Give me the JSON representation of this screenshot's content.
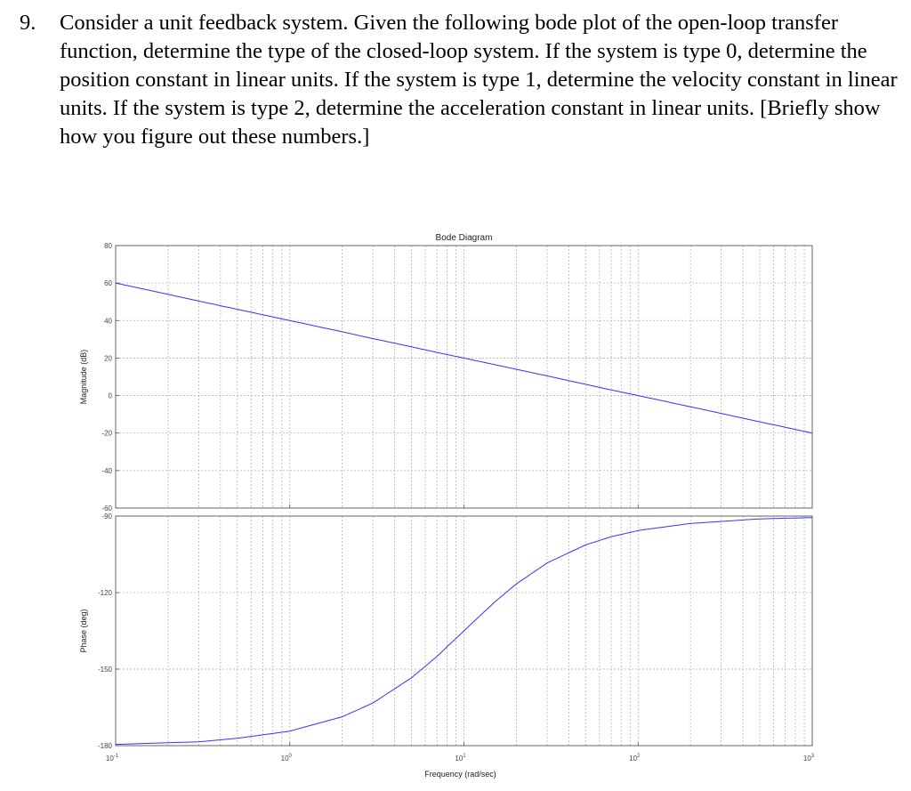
{
  "question": {
    "number": "9.",
    "text": "Consider a unit feedback system. Given the following bode plot of the open-loop transfer function, determine the type of the closed-loop system. If the system is type 0, determine the position constant in linear units. If the system is type 1, determine the velocity constant in linear units. If the system is type 2, determine the acceleration constant in linear units. [Briefly show how you figure out these numbers.]"
  },
  "colors": {
    "curve": "#3333ff",
    "grid": "#b4b4b4",
    "axis": "#555555"
  },
  "chart_data": {
    "type": "line",
    "title": "Bode Diagram",
    "xlabel": "Frequency  (rad/sec)",
    "xscale": "log",
    "xlim": [
      0.1,
      1000
    ],
    "x_ticks": [
      {
        "base": "10",
        "exp": "-1"
      },
      {
        "base": "10",
        "exp": "0"
      },
      {
        "base": "10",
        "exp": "1"
      },
      {
        "base": "10",
        "exp": "2"
      },
      {
        "base": "10",
        "exp": "3"
      }
    ],
    "grid": true,
    "magnitude": {
      "ylabel": "Magnitude (dB)",
      "ylim": [
        -60,
        80
      ],
      "yticks": [
        "80",
        "60",
        "40",
        "20",
        "0",
        "-20",
        "-40",
        "-60"
      ],
      "series": {
        "x": [
          0.1,
          0.2,
          0.3,
          0.5,
          1,
          2,
          3,
          5,
          7,
          10,
          15,
          20,
          30,
          50,
          70,
          100,
          200,
          500,
          1000
        ],
        "y": [
          60,
          54,
          50.4,
          46,
          40,
          34,
          30.4,
          26,
          23,
          20,
          16.5,
          14,
          10.5,
          6,
          3,
          0,
          -6,
          -14,
          -20
        ]
      }
    },
    "phase": {
      "ylabel": "Phase (deg)",
      "ylim": [
        -180,
        -90
      ],
      "yticks": [
        "-90",
        "-120",
        "-150",
        "-180"
      ],
      "series": {
        "x": [
          0.1,
          0.3,
          0.5,
          1,
          2,
          3,
          5,
          7,
          10,
          15,
          20,
          30,
          50,
          70,
          100,
          200,
          500,
          1000
        ],
        "y": [
          -179.5,
          -178.5,
          -177.1,
          -174.3,
          -168.7,
          -163.3,
          -153.4,
          -145,
          -135,
          -123.7,
          -116.6,
          -108.4,
          -101.3,
          -98.1,
          -95.7,
          -92.9,
          -91.1,
          -90.6
        ]
      }
    }
  }
}
